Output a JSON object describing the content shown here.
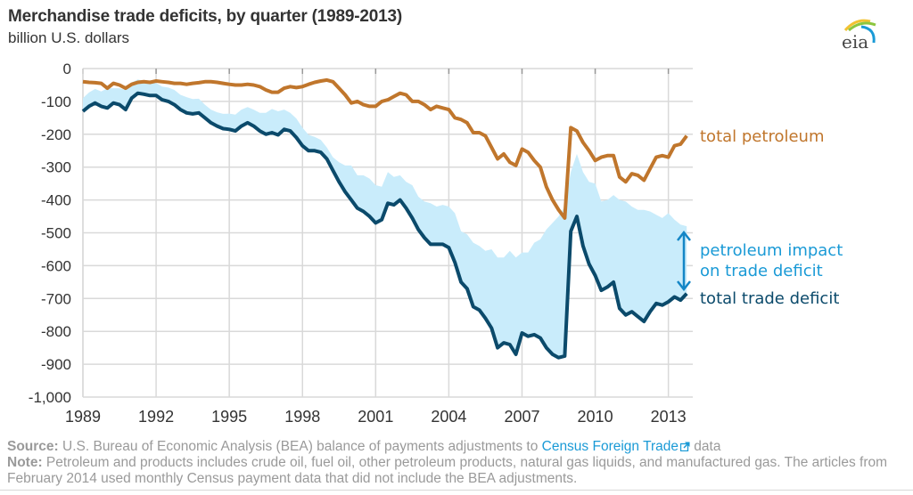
{
  "header": {
    "title": "Merchandise trade deficits, by quarter (1989-2013)",
    "subtitle": "billion U.S. dollars",
    "logo_text": "eia",
    "logo_icon": "eia-logo-icon"
  },
  "colors": {
    "petroleum": "#c0762c",
    "trade_deficit": "#0b4a6b",
    "impact_fill": "#c9ecfb",
    "impact_arrow": "#1486c6",
    "impact_label": "#1a9ad6",
    "grid": "#d9d9d9",
    "axis_text": "#333333",
    "footer_text": "#9a9a9a",
    "link": "#1a9ad6"
  },
  "footer": {
    "source_label": "Source:",
    "source_text": " U.S. Bureau of Economic Analysis (BEA) balance of payments adjustments to ",
    "source_link": "Census Foreign Trade",
    "source_link_icon": "external-link-icon",
    "source_tail": " data",
    "note_label": "Note:",
    "note_text": " Petroleum and products includes crude oil, fuel oil, other petroleum products, natural gas liquids, and manufactured gas. The articles from February 2014 used monthly Census payment data that did not include the BEA adjustments."
  },
  "chart_data": {
    "type": "line",
    "title": "Merchandise trade deficits, by quarter (1989-2013)",
    "ylabel": "billion U.S. dollars",
    "xlabel": "",
    "xlim": [
      1989,
      2014
    ],
    "ylim": [
      -1000,
      0
    ],
    "x_ticks": [
      "1989",
      "1992",
      "1995",
      "1998",
      "2001",
      "2004",
      "2007",
      "2010",
      "2013"
    ],
    "x_tick_values": [
      1989,
      1992,
      1995,
      1998,
      2001,
      2004,
      2007,
      2010,
      2013
    ],
    "y_ticks": [
      "0",
      "-100",
      "-200",
      "-300",
      "-400",
      "-500",
      "-600",
      "-700",
      "-800",
      "-900",
      "-1,000"
    ],
    "y_tick_values": [
      0,
      -100,
      -200,
      -300,
      -400,
      -500,
      -600,
      -700,
      -800,
      -900,
      -1000
    ],
    "grid": true,
    "legend": "inline-right",
    "annotations": [
      {
        "text": "total petroleum",
        "series": "total petroleum"
      },
      {
        "text": "petroleum impact",
        "series": "impact"
      },
      {
        "text": "on trade deficit",
        "series": "impact"
      },
      {
        "text": "total trade deficit",
        "series": "total trade deficit"
      }
    ],
    "x": [
      1989.0,
      1989.25,
      1989.5,
      1989.75,
      1990.0,
      1990.25,
      1990.5,
      1990.75,
      1991.0,
      1991.25,
      1991.5,
      1991.75,
      1992.0,
      1992.25,
      1992.5,
      1992.75,
      1993.0,
      1993.25,
      1993.5,
      1993.75,
      1994.0,
      1994.25,
      1994.5,
      1994.75,
      1995.0,
      1995.25,
      1995.5,
      1995.75,
      1996.0,
      1996.25,
      1996.5,
      1996.75,
      1997.0,
      1997.25,
      1997.5,
      1997.75,
      1998.0,
      1998.25,
      1998.5,
      1998.75,
      1999.0,
      1999.25,
      1999.5,
      1999.75,
      2000.0,
      2000.25,
      2000.5,
      2000.75,
      2001.0,
      2001.25,
      2001.5,
      2001.75,
      2002.0,
      2002.25,
      2002.5,
      2002.75,
      2003.0,
      2003.25,
      2003.5,
      2003.75,
      2004.0,
      2004.25,
      2004.5,
      2004.75,
      2005.0,
      2005.25,
      2005.5,
      2005.75,
      2006.0,
      2006.25,
      2006.5,
      2006.75,
      2007.0,
      2007.25,
      2007.5,
      2007.75,
      2008.0,
      2008.25,
      2008.5,
      2008.75,
      2009.0,
      2009.25,
      2009.5,
      2009.75,
      2010.0,
      2010.25,
      2010.5,
      2010.75,
      2011.0,
      2011.25,
      2011.5,
      2011.75,
      2012.0,
      2012.25,
      2012.5,
      2012.75,
      2013.0,
      2013.25,
      2013.5,
      2013.75
    ],
    "series": [
      {
        "name": "total petroleum",
        "values": [
          -40,
          -42,
          -43,
          -45,
          -60,
          -45,
          -50,
          -60,
          -48,
          -42,
          -40,
          -42,
          -38,
          -40,
          -42,
          -45,
          -45,
          -48,
          -45,
          -43,
          -40,
          -40,
          -42,
          -45,
          -48,
          -50,
          -50,
          -48,
          -50,
          -55,
          -65,
          -72,
          -72,
          -60,
          -55,
          -58,
          -55,
          -48,
          -42,
          -38,
          -35,
          -40,
          -60,
          -80,
          -105,
          -100,
          -110,
          -115,
          -115,
          -100,
          -95,
          -85,
          -75,
          -80,
          -100,
          -100,
          -110,
          -125,
          -115,
          -120,
          -125,
          -150,
          -155,
          -165,
          -195,
          -195,
          -205,
          -240,
          -275,
          -260,
          -285,
          -295,
          -245,
          -255,
          -280,
          -300,
          -360,
          -400,
          -430,
          -455,
          -180,
          -190,
          -225,
          -250,
          -280,
          -270,
          -265,
          -265,
          -330,
          -345,
          -320,
          -325,
          -340,
          -305,
          -270,
          -265,
          -270,
          -235,
          -230,
          -205
        ]
      },
      {
        "name": "total trade deficit",
        "values": [
          -130,
          -115,
          -105,
          -115,
          -120,
          -105,
          -110,
          -125,
          -90,
          -75,
          -78,
          -82,
          -82,
          -95,
          -100,
          -110,
          -125,
          -135,
          -138,
          -135,
          -150,
          -165,
          -175,
          -183,
          -185,
          -190,
          -175,
          -165,
          -175,
          -190,
          -200,
          -195,
          -202,
          -185,
          -190,
          -210,
          -235,
          -250,
          -250,
          -255,
          -275,
          -310,
          -345,
          -375,
          -400,
          -425,
          -435,
          -450,
          -470,
          -460,
          -410,
          -415,
          -400,
          -425,
          -455,
          -490,
          -515,
          -535,
          -535,
          -535,
          -545,
          -590,
          -650,
          -670,
          -725,
          -735,
          -760,
          -790,
          -850,
          -835,
          -840,
          -870,
          -805,
          -815,
          -810,
          -820,
          -850,
          -870,
          -880,
          -875,
          -495,
          -450,
          -540,
          -595,
          -630,
          -675,
          -665,
          -650,
          -730,
          -750,
          -740,
          -755,
          -770,
          -740,
          -715,
          -720,
          -710,
          -695,
          -705,
          -685
        ]
      },
      {
        "name": "petroleum impact (non-petroleum trade deficit)",
        "values": [
          -90,
          -73,
          -62,
          -70,
          -60,
          -60,
          -60,
          -65,
          -42,
          -33,
          -38,
          -40,
          -44,
          -55,
          -58,
          -65,
          -80,
          -87,
          -93,
          -92,
          -110,
          -125,
          -133,
          -138,
          -137,
          -140,
          -125,
          -117,
          -125,
          -135,
          -135,
          -123,
          -130,
          -125,
          -135,
          -152,
          -180,
          -202,
          -208,
          -217,
          -240,
          -270,
          -285,
          -295,
          -295,
          -325,
          -325,
          -335,
          -355,
          -360,
          -315,
          -330,
          -325,
          -345,
          -355,
          -390,
          -405,
          -410,
          -420,
          -415,
          -420,
          -440,
          -495,
          -505,
          -530,
          -540,
          -555,
          -550,
          -575,
          -575,
          -555,
          -575,
          -560,
          -560,
          -530,
          -520,
          -490,
          -470,
          -450,
          -420,
          -315,
          -260,
          -315,
          -345,
          -350,
          -405,
          -400,
          -385,
          -400,
          -405,
          -420,
          -430,
          -430,
          -435,
          -445,
          -455,
          -440,
          -460,
          -475,
          -480
        ]
      }
    ]
  }
}
